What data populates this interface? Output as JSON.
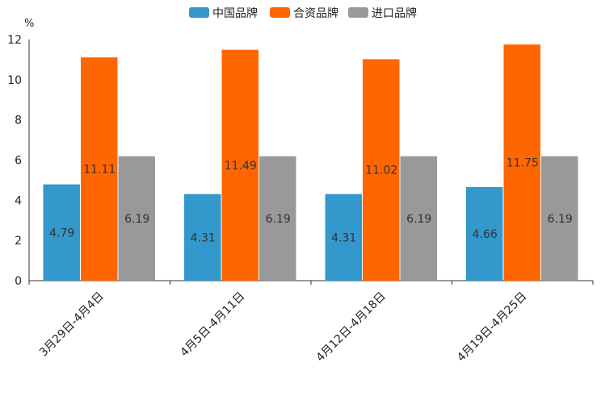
{
  "chart_data": {
    "type": "bar",
    "title": "",
    "xlabel": "",
    "ylabel": "%",
    "ylim": [
      0,
      12
    ],
    "yticks": [
      0,
      2,
      4,
      6,
      8,
      10,
      12
    ],
    "grid": false,
    "legend_position": "top-center",
    "categories": [
      "3月29日-4月4日",
      "4月5日-4月11日",
      "4月12日-4月18日",
      "4月19日-4月25日"
    ],
    "series": [
      {
        "name": "中国品牌",
        "color": "#3399cc",
        "values": [
          4.79,
          4.31,
          4.31,
          4.66
        ],
        "labels": [
          "4.79",
          "4.31",
          "4.31",
          "4.66"
        ]
      },
      {
        "name": "合资品牌",
        "color": "#ff6600",
        "values": [
          11.11,
          11.49,
          11.02,
          11.75
        ],
        "labels": [
          "11.11",
          "11.49",
          "11.02",
          "11.75"
        ]
      },
      {
        "name": "进口品牌",
        "color": "#999999",
        "values": [
          6.19,
          6.19,
          6.19,
          6.19
        ],
        "labels": [
          "6.19",
          "6.19",
          "6.19",
          "6.19"
        ]
      }
    ]
  }
}
